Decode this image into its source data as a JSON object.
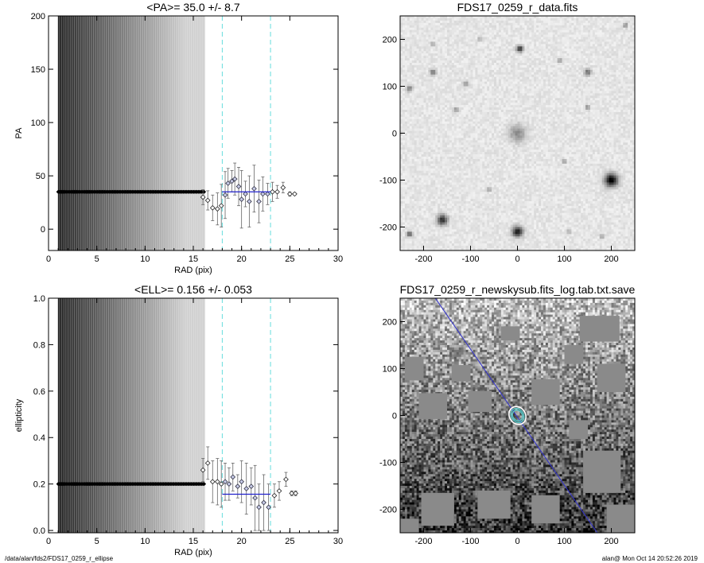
{
  "footer": {
    "left": "/data/alan/fds2/FDS17_0259_r_ellipse",
    "right": "alan@  Mon Oct 14 20:52:26 2019"
  },
  "chart_data": [
    {
      "type": "scatter",
      "id": "pa-panel",
      "title": "<PA>=  35.0 +/-   8.7",
      "xlabel": "RAD (pix)",
      "ylabel": "PA",
      "xlim": [
        0,
        30
      ],
      "ylim": [
        -20,
        200
      ],
      "xticks": [
        0,
        5,
        10,
        15,
        20,
        25,
        30
      ],
      "yticks": [
        0,
        50,
        100,
        150,
        200
      ],
      "dense_region": {
        "x_start": 1.0,
        "x_end": 16.2,
        "value": 35.0,
        "err": 1000
      },
      "vlines": [
        18.0,
        23.0
      ],
      "mean_line": {
        "x": [
          18.0,
          23.0
        ],
        "y": 35.0
      },
      "points": [
        {
          "x": 16.0,
          "y": 30,
          "err": 7
        },
        {
          "x": 16.5,
          "y": 27,
          "err": 9
        },
        {
          "x": 17.0,
          "y": 20,
          "err": 12
        },
        {
          "x": 17.5,
          "y": 19,
          "err": 15
        },
        {
          "x": 17.9,
          "y": 22,
          "err": 20
        },
        {
          "x": 18.3,
          "y": 32,
          "err": 22
        },
        {
          "x": 18.6,
          "y": 43,
          "err": 14
        },
        {
          "x": 19.0,
          "y": 45,
          "err": 10
        },
        {
          "x": 19.3,
          "y": 47,
          "err": 15
        },
        {
          "x": 19.7,
          "y": 40,
          "err": 18
        },
        {
          "x": 20.0,
          "y": 28,
          "err": 27
        },
        {
          "x": 20.4,
          "y": 33,
          "err": 12
        },
        {
          "x": 20.8,
          "y": 26,
          "err": 24
        },
        {
          "x": 21.3,
          "y": 38,
          "err": 22
        },
        {
          "x": 21.8,
          "y": 26,
          "err": 20
        },
        {
          "x": 22.2,
          "y": 33,
          "err": 16
        },
        {
          "x": 22.7,
          "y": 33,
          "err": 10
        },
        {
          "x": 23.2,
          "y": 35,
          "err": 9
        },
        {
          "x": 23.7,
          "y": 35,
          "err": 6
        },
        {
          "x": 24.3,
          "y": 39,
          "err": 5
        },
        {
          "x": 25.0,
          "y": 33,
          "err": 2
        },
        {
          "x": 25.5,
          "y": 33,
          "err": 1
        }
      ]
    },
    {
      "type": "scatter",
      "id": "ell-panel",
      "title": "<ELL>= 0.156 +/-  0.053",
      "xlabel": "RAD (pix)",
      "ylabel": "ellipticity",
      "xlim": [
        0,
        30
      ],
      "ylim": [
        -0.01,
        1.0
      ],
      "xticks": [
        0,
        5,
        10,
        15,
        20,
        25,
        30
      ],
      "yticks": [
        0.0,
        0.2,
        0.4,
        0.6,
        0.8,
        1.0
      ],
      "ytick_labels": [
        "0.0",
        "0.2",
        "0.4",
        "0.6",
        "0.8",
        "1.0"
      ],
      "dense_region": {
        "x_start": 1.0,
        "x_end": 16.2,
        "value": 0.2,
        "err": 10
      },
      "vlines": [
        18.0,
        23.0
      ],
      "mean_line": {
        "x": [
          18.0,
          23.0
        ],
        "y": 0.156
      },
      "points": [
        {
          "x": 16.0,
          "y": 0.26,
          "err": 0.05
        },
        {
          "x": 16.5,
          "y": 0.29,
          "err": 0.07
        },
        {
          "x": 17.0,
          "y": 0.21,
          "err": 0.09
        },
        {
          "x": 17.5,
          "y": 0.21,
          "err": 0.1
        },
        {
          "x": 17.9,
          "y": 0.2,
          "err": 0.1
        },
        {
          "x": 18.3,
          "y": 0.21,
          "err": 0.08
        },
        {
          "x": 18.7,
          "y": 0.2,
          "err": 0.07
        },
        {
          "x": 19.1,
          "y": 0.23,
          "err": 0.06
        },
        {
          "x": 19.6,
          "y": 0.19,
          "err": 0.05
        },
        {
          "x": 20.0,
          "y": 0.21,
          "err": 0.09
        },
        {
          "x": 20.5,
          "y": 0.18,
          "err": 0.11
        },
        {
          "x": 21.0,
          "y": 0.19,
          "err": 0.08
        },
        {
          "x": 21.4,
          "y": 0.14,
          "err": 0.14
        },
        {
          "x": 21.8,
          "y": 0.1,
          "err": 0.1
        },
        {
          "x": 22.3,
          "y": 0.12,
          "err": 0.12
        },
        {
          "x": 22.8,
          "y": 0.1,
          "err": 0.1
        },
        {
          "x": 23.4,
          "y": 0.15,
          "err": 0.05
        },
        {
          "x": 23.9,
          "y": 0.17,
          "err": 0.04
        },
        {
          "x": 24.6,
          "y": 0.22,
          "err": 0.03
        },
        {
          "x": 25.2,
          "y": 0.16,
          "err": 0.01
        },
        {
          "x": 25.6,
          "y": 0.16,
          "err": 0.01
        }
      ]
    },
    {
      "type": "heatmap",
      "id": "data-image",
      "title": "FDS17_0259_r_data.fits",
      "xlim": [
        -250,
        250
      ],
      "ylim": [
        -250,
        250
      ],
      "xticks": [
        -200,
        -100,
        0,
        100,
        200
      ],
      "yticks": [
        -200,
        -100,
        0,
        100,
        200
      ],
      "sources": [
        {
          "x": 0,
          "y": 0,
          "r": 18,
          "peak": 0.35
        },
        {
          "x": 200,
          "y": -100,
          "r": 14,
          "peak": 0.95
        },
        {
          "x": 0,
          "y": -210,
          "r": 11,
          "peak": 0.85
        },
        {
          "x": -160,
          "y": -185,
          "r": 11,
          "peak": 0.75
        },
        {
          "x": 5,
          "y": 180,
          "r": 7,
          "peak": 0.75
        },
        {
          "x": -180,
          "y": 130,
          "r": 6,
          "peak": 0.5
        },
        {
          "x": -230,
          "y": 95,
          "r": 6,
          "peak": 0.45
        },
        {
          "x": 150,
          "y": 130,
          "r": 7,
          "peak": 0.5
        },
        {
          "x": 150,
          "y": 55,
          "r": 5,
          "peak": 0.4
        },
        {
          "x": 90,
          "y": 155,
          "r": 4,
          "peak": 0.4
        },
        {
          "x": -110,
          "y": 105,
          "r": 5,
          "peak": 0.45
        },
        {
          "x": -130,
          "y": 50,
          "r": 5,
          "peak": 0.4
        },
        {
          "x": -230,
          "y": -215,
          "r": 6,
          "peak": 0.6
        },
        {
          "x": -180,
          "y": 190,
          "r": 4,
          "peak": 0.35
        },
        {
          "x": 230,
          "y": 230,
          "r": 5,
          "peak": 0.4
        },
        {
          "x": 100,
          "y": -60,
          "r": 4,
          "peak": 0.4
        },
        {
          "x": 110,
          "y": -210,
          "r": 4,
          "peak": 0.4
        },
        {
          "x": -60,
          "y": -120,
          "r": 4,
          "peak": 0.35
        },
        {
          "x": 180,
          "y": -220,
          "r": 4,
          "peak": 0.35
        },
        {
          "x": -80,
          "y": 200,
          "r": 4,
          "peak": 0.35
        }
      ]
    },
    {
      "type": "heatmap",
      "id": "skysub-image",
      "title": "FDS17_0259_r_newskysub.fits_log.tab.txt.save",
      "xlim": [
        -250,
        250
      ],
      "ylim": [
        -250,
        250
      ],
      "xticks": [
        -200,
        -100,
        0,
        100,
        200
      ],
      "yticks": [
        -200,
        -100,
        0,
        100,
        200
      ],
      "diag_line": {
        "x1": -175,
        "y1": 250,
        "x2": 170,
        "y2": -250
      },
      "ellipses": [
        {
          "x": 0,
          "y": 0,
          "a": 20,
          "b": 17
        },
        {
          "x": 0,
          "y": 0,
          "a": 16,
          "b": 13
        },
        {
          "x": 0,
          "y": 0,
          "a": 12,
          "b": 10
        }
      ],
      "masks": [
        {
          "x": 175,
          "y": 185,
          "w": 85,
          "h": 55
        },
        {
          "x": -15,
          "y": 175,
          "w": 40,
          "h": 30
        },
        {
          "x": 200,
          "y": 80,
          "w": 60,
          "h": 60
        },
        {
          "x": 120,
          "y": 130,
          "w": 40,
          "h": 40
        },
        {
          "x": -120,
          "y": 90,
          "w": 40,
          "h": 35
        },
        {
          "x": -220,
          "y": 100,
          "w": 40,
          "h": 50
        },
        {
          "x": -180,
          "y": 20,
          "w": 60,
          "h": 55
        },
        {
          "x": -80,
          "y": 30,
          "w": 50,
          "h": 45
        },
        {
          "x": 60,
          "y": 50,
          "w": 60,
          "h": 55
        },
        {
          "x": 180,
          "y": -120,
          "w": 80,
          "h": 90
        },
        {
          "x": -170,
          "y": -200,
          "w": 70,
          "h": 70
        },
        {
          "x": -50,
          "y": -190,
          "w": 70,
          "h": 60
        },
        {
          "x": 60,
          "y": -200,
          "w": 60,
          "h": 60
        },
        {
          "x": -240,
          "y": -240,
          "w": 60,
          "h": 40
        },
        {
          "x": 220,
          "y": -220,
          "w": 60,
          "h": 60
        },
        {
          "x": 130,
          "y": -30,
          "w": 40,
          "h": 40
        }
      ]
    }
  ]
}
